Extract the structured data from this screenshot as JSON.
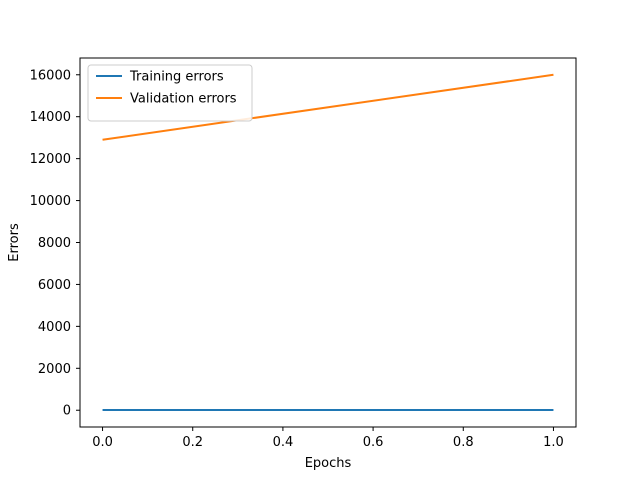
{
  "chart_data": {
    "type": "line",
    "title": "",
    "xlabel": "Epochs",
    "ylabel": "Errors",
    "xlim": [
      -0.05,
      1.05
    ],
    "ylim": [
      -800,
      16800
    ],
    "xticks": [
      0.0,
      0.2,
      0.4,
      0.6,
      0.8,
      1.0
    ],
    "xtick_labels": [
      "0.0",
      "0.2",
      "0.4",
      "0.6",
      "0.8",
      "1.0"
    ],
    "yticks": [
      0,
      2000,
      4000,
      6000,
      8000,
      10000,
      12000,
      14000,
      16000
    ],
    "ytick_labels": [
      "0",
      "2000",
      "4000",
      "6000",
      "8000",
      "10000",
      "12000",
      "14000",
      "16000"
    ],
    "grid": false,
    "legend_position": "top-left",
    "series": [
      {
        "name": "Training errors",
        "color": "#1f77b4",
        "x": [
          0.0,
          1.0
        ],
        "y": [
          10,
          10
        ]
      },
      {
        "name": "Validation errors",
        "color": "#ff7f0e",
        "x": [
          0.0,
          1.0
        ],
        "y": [
          12900,
          16000
        ]
      }
    ]
  }
}
